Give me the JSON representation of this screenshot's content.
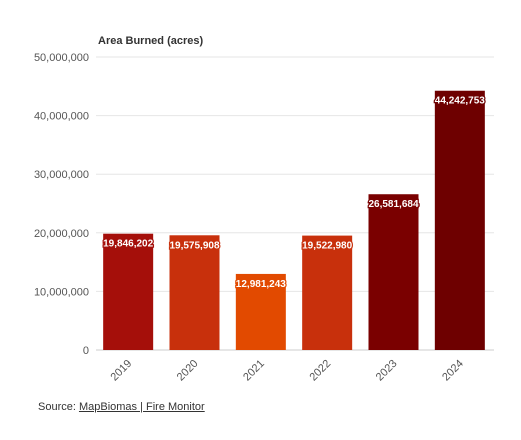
{
  "chart_data": {
    "type": "bar",
    "title": "Area Burned (acres)",
    "categories": [
      "2019",
      "2020",
      "2021",
      "2022",
      "2023",
      "2024"
    ],
    "values": [
      19846202,
      19575908,
      12981243,
      19522980,
      26581684,
      44242753
    ],
    "value_labels": [
      "19,846,202",
      "19,575,908",
      "12,981,243",
      "19,522,980",
      "26,581,684",
      "44,242,753"
    ],
    "bar_colors": [
      "#a50f0a",
      "#c8300c",
      "#e24a00",
      "#c8300c",
      "#7a0000",
      "#6e0000"
    ],
    "yticks": [
      0,
      10000000,
      20000000,
      30000000,
      40000000,
      50000000
    ],
    "ytick_labels": [
      "0",
      "10,000,000",
      "20,000,000",
      "30,000,000",
      "40,000,000",
      "50,000,000"
    ],
    "ylim": [
      0,
      50000000
    ],
    "grid": true
  },
  "source": {
    "prefix": "Source: ",
    "link_label": "MapBiomas | Fire Monitor"
  }
}
